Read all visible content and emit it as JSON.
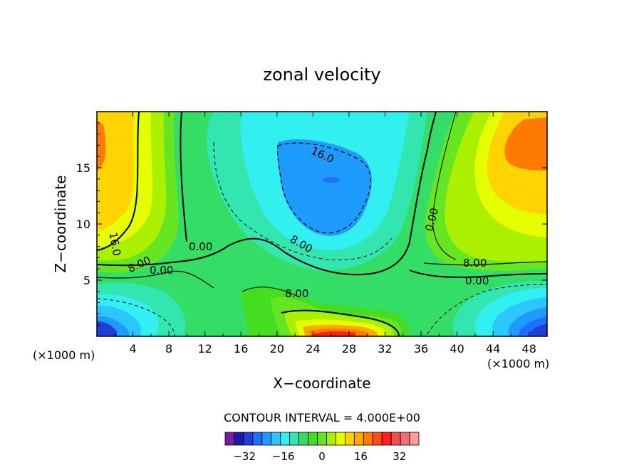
{
  "chart_data": {
    "type": "heatmap",
    "title": "zonal velocity",
    "xlabel": "X−coordinate",
    "ylabel": "Z−coordinate",
    "x_unit_left": "(×1000 m)",
    "x_unit_right": "(×1000 m)",
    "xlim": [
      0,
      50
    ],
    "ylim": [
      0,
      20
    ],
    "x_ticks": [
      "4",
      "8",
      "12",
      "16",
      "20",
      "24",
      "28",
      "32",
      "36",
      "40",
      "44",
      "48"
    ],
    "y_ticks": [
      "5",
      "10",
      "15"
    ],
    "contour_interval_label": "CONTOUR INTERVAL = 4.000E+00",
    "colorbar_ticks": [
      "−32",
      "−16",
      "0",
      "16",
      "32"
    ],
    "contour_labels": [
      "16.0",
      "16.0",
      "8.00",
      "0.00",
      "0.00",
      "8.00",
      "8.00",
      "0.00",
      "8.00",
      "0.00"
    ],
    "colorbar_colors": [
      "#7a1fa2",
      "#1a1aa8",
      "#1f3fd6",
      "#1f6fff",
      "#1e9bff",
      "#2bc8ff",
      "#33f0f0",
      "#33e6b0",
      "#33dd66",
      "#44dd22",
      "#66e622",
      "#aaf000",
      "#e6ff00",
      "#ffd400",
      "#ffaa00",
      "#ff7a00",
      "#ff4d1a",
      "#ff1f1f",
      "#f25050",
      "#f06e6e",
      "#ff9a9a"
    ],
    "field_peak_value": 32
  }
}
